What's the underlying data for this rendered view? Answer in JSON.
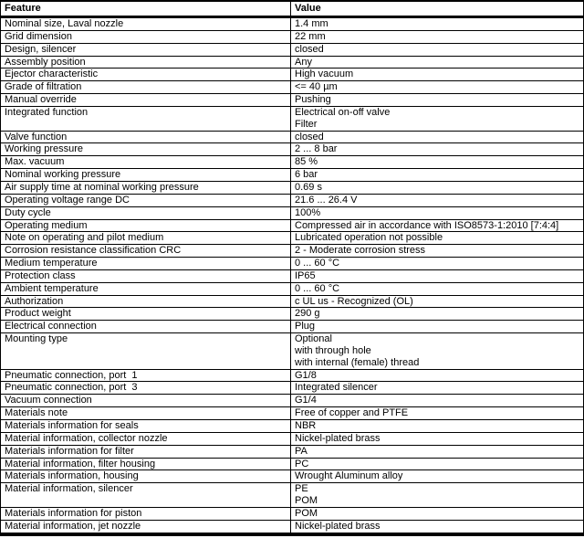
{
  "colors": {
    "background": "#ffffff",
    "text": "#000000",
    "border": "#000000"
  },
  "table": {
    "columns": [
      "Feature",
      "Value"
    ],
    "rows": [
      {
        "feature": "Nominal size, Laval nozzle",
        "value": [
          "1.4 mm"
        ]
      },
      {
        "feature": "Grid dimension",
        "value": [
          "22 mm"
        ]
      },
      {
        "feature": "Design, silencer",
        "value": [
          "closed"
        ]
      },
      {
        "feature": "Assembly position",
        "value": [
          "Any"
        ]
      },
      {
        "feature": "Ejector characteristic",
        "value": [
          "High vacuum"
        ]
      },
      {
        "feature": "Grade of filtration",
        "value": [
          "<= 40 µm"
        ]
      },
      {
        "feature": "Manual override",
        "value": [
          "Pushing"
        ]
      },
      {
        "feature": "Integrated function",
        "value": [
          "Electrical on-off valve",
          "Filter"
        ]
      },
      {
        "feature": "Valve function",
        "value": [
          "closed"
        ]
      },
      {
        "feature": "Working pressure",
        "value": [
          "2 ... 8 bar"
        ]
      },
      {
        "feature": "Max. vacuum",
        "value": [
          "85 %"
        ]
      },
      {
        "feature": "Nominal working pressure",
        "value": [
          "6 bar"
        ]
      },
      {
        "feature": "Air supply time at nominal working pressure",
        "value": [
          "0.69 s"
        ]
      },
      {
        "feature": "Operating voltage range DC",
        "value": [
          "21.6 ... 26.4 V"
        ]
      },
      {
        "feature": "Duty cycle",
        "value": [
          "100%"
        ]
      },
      {
        "feature": "Operating medium",
        "value": [
          "Compressed air in accordance with ISO8573-1:2010 [7:4:4]"
        ]
      },
      {
        "feature": "Note on operating and pilot medium",
        "value": [
          "Lubricated operation not possible"
        ]
      },
      {
        "feature": "Corrosion resistance classification CRC",
        "value": [
          "2 - Moderate corrosion stress"
        ]
      },
      {
        "feature": "Medium temperature",
        "value": [
          "0 ... 60 °C"
        ]
      },
      {
        "feature": "Protection class",
        "value": [
          "IP65"
        ]
      },
      {
        "feature": "Ambient temperature",
        "value": [
          "0 ... 60 °C"
        ]
      },
      {
        "feature": "Authorization",
        "value": [
          "c UL us - Recognized (OL)"
        ]
      },
      {
        "feature": "Product weight",
        "value": [
          "290 g"
        ]
      },
      {
        "feature": "Electrical connection",
        "value": [
          "Plug"
        ]
      },
      {
        "feature": "Mounting type",
        "value": [
          "Optional",
          "with through hole",
          "with internal (female) thread"
        ]
      },
      {
        "feature": "Pneumatic connection, port  1",
        "value": [
          "G1/8"
        ]
      },
      {
        "feature": "Pneumatic connection, port  3",
        "value": [
          "Integrated silencer"
        ]
      },
      {
        "feature": "Vacuum connection",
        "value": [
          "G1/4"
        ]
      },
      {
        "feature": "Materials note",
        "value": [
          "Free of copper and PTFE"
        ]
      },
      {
        "feature": "Materials information for seals",
        "value": [
          "NBR"
        ]
      },
      {
        "feature": "Material information, collector nozzle",
        "value": [
          "Nickel-plated brass"
        ]
      },
      {
        "feature": "Materials information for filter",
        "value": [
          "PA"
        ]
      },
      {
        "feature": "Material information, filter housing",
        "value": [
          "PC"
        ]
      },
      {
        "feature": "Materials information, housing",
        "value": [
          "Wrought Aluminum alloy"
        ]
      },
      {
        "feature": "Material information, silencer",
        "value": [
          "PE",
          "POM"
        ]
      },
      {
        "feature": "Materials information for piston",
        "value": [
          "POM"
        ]
      },
      {
        "feature": "Material information, jet nozzle",
        "value": [
          "Nickel-plated brass"
        ]
      }
    ]
  }
}
